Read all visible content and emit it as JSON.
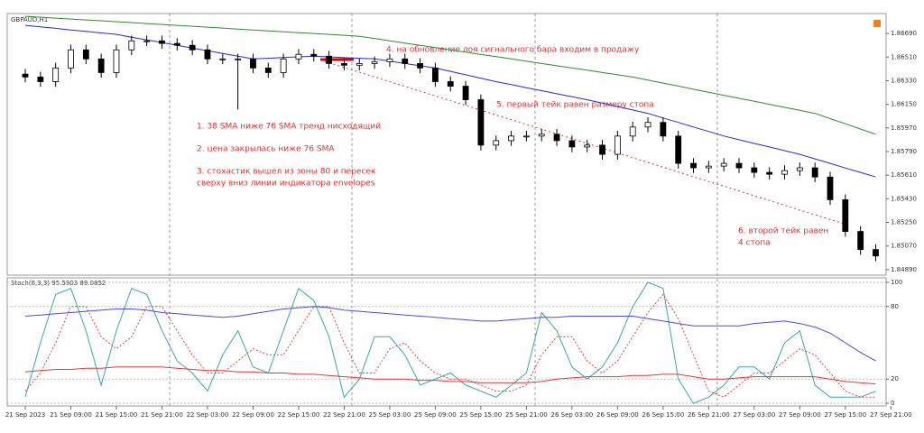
{
  "chart_data": [
    {
      "type": "candlestick",
      "title": "GBPAUD,H1",
      "categories": [
        "21 Sep 2023",
        null,
        null,
        "21 Sep 09:00",
        null,
        null,
        "21 Sep 15:00",
        null,
        null,
        "21 Sep 21:00",
        null,
        null,
        "22 Sep 03:00",
        null,
        null,
        "22 Sep 09:00",
        null,
        null,
        "22 Sep 15:00",
        null,
        null,
        "22 Sep 21:00",
        null,
        null,
        "25 Sep 03:00",
        null,
        null,
        "25 Sep 09:00",
        null,
        null,
        "25 Sep 15:00",
        null,
        null,
        "25 Sep 21:00",
        null,
        null,
        "26 Sep 03:00",
        null,
        null,
        "26 Sep 09:00",
        null,
        null,
        "26 Sep 15:00",
        null,
        null,
        "26 Sep 21:00",
        null,
        null,
        "27 Sep 03:00",
        null,
        null,
        "27 Sep 09:00",
        null,
        null,
        "27 Sep 15:00",
        null,
        null,
        "27 Sep 21:00"
      ],
      "open": [
        1.8638,
        1.86358,
        1.86323,
        1.86427,
        1.86565,
        1.86496,
        1.86392,
        1.86565,
        1.86634,
        1.86634,
        1.86614,
        1.866,
        1.86565,
        1.86496,
        1.86496,
        1.86496,
        1.86427,
        1.86392,
        1.86496,
        1.86531,
        1.86517,
        1.86461,
        1.86448,
        1.86461,
        1.86475,
        1.86496,
        1.86461,
        1.86427,
        1.86323,
        1.86288,
        1.86185,
        1.85839,
        1.85873,
        1.85908,
        1.85908,
        1.85922,
        1.85873,
        1.85825,
        1.85839,
        1.85769,
        1.85908,
        1.85977,
        1.86012,
        1.85908,
        1.857,
        1.85666,
        1.85679,
        1.857,
        1.85666,
        1.85631,
        1.85617,
        1.85645,
        1.85666,
        1.85596,
        1.85423,
        1.85181,
        1.85043,
        null
      ],
      "high": [
        1.8642,
        1.86398,
        1.86467,
        1.86605,
        1.86605,
        1.86536,
        1.86605,
        1.86674,
        1.86674,
        1.86674,
        1.86654,
        1.8664,
        1.86605,
        1.86536,
        1.86536,
        1.86536,
        1.86467,
        1.86536,
        1.86571,
        1.86571,
        1.86557,
        1.86501,
        1.86501,
        1.86515,
        1.86536,
        1.86536,
        1.86501,
        1.86467,
        1.86363,
        1.86328,
        1.86225,
        1.85913,
        1.85948,
        1.85948,
        1.85962,
        1.85962,
        1.85913,
        1.85879,
        1.85879,
        1.85948,
        1.86017,
        1.86052,
        1.86052,
        1.85948,
        1.8574,
        1.85719,
        1.8574,
        1.8574,
        1.85706,
        1.85671,
        1.85685,
        1.85706,
        1.85706,
        1.85636,
        1.85463,
        1.85221,
        1.85083,
        null
      ],
      "low": [
        1.86318,
        1.86283,
        1.86283,
        1.86387,
        1.86456,
        1.86352,
        1.86352,
        1.86525,
        1.86594,
        1.86574,
        1.8656,
        1.86525,
        1.86456,
        1.86456,
        1.8611,
        1.86387,
        1.86352,
        1.86352,
        1.86456,
        1.86477,
        1.86421,
        1.86408,
        1.86408,
        1.86421,
        1.86435,
        1.86421,
        1.86387,
        1.86283,
        1.86248,
        1.86145,
        1.85799,
        1.85799,
        1.85833,
        1.85868,
        1.85868,
        1.85833,
        1.85785,
        1.85785,
        1.85729,
        1.85729,
        1.85868,
        1.85937,
        1.85868,
        1.8566,
        1.85626,
        1.85626,
        1.85639,
        1.85626,
        1.85591,
        1.85577,
        1.85577,
        1.85605,
        1.85556,
        1.85383,
        1.85141,
        1.85003,
        1.84954,
        null
      ],
      "close": [
        1.86358,
        1.86323,
        1.86427,
        1.86565,
        1.86496,
        1.86392,
        1.86565,
        1.86634,
        1.86634,
        1.86614,
        1.866,
        1.86565,
        1.86496,
        1.86496,
        1.86496,
        1.86427,
        1.86392,
        1.86496,
        1.86531,
        1.86517,
        1.86461,
        1.86448,
        1.86461,
        1.86475,
        1.86496,
        1.86461,
        1.86427,
        1.86323,
        1.86288,
        1.86185,
        1.85839,
        1.85873,
        1.85908,
        1.85908,
        1.85922,
        1.85873,
        1.85825,
        1.85839,
        1.85769,
        1.85908,
        1.85977,
        1.86012,
        1.85908,
        1.857,
        1.85666,
        1.85679,
        1.857,
        1.85666,
        1.85631,
        1.85617,
        1.85645,
        1.85666,
        1.85596,
        1.85423,
        1.85181,
        1.85043,
        1.84994,
        null
      ],
      "series": [
        {
          "color": "#2a2ad0",
          "values": [
            1.86752,
            1.8674,
            1.86729,
            1.86717,
            1.86706,
            1.86694,
            1.86683,
            1.86662,
            1.86641,
            1.86621,
            1.866,
            1.86579,
            1.86558,
            1.86538,
            1.86517,
            1.86496,
            1.86501,
            1.86507,
            1.86512,
            1.86517,
            1.86512,
            1.86506,
            1.86501,
            1.86496,
            1.86479,
            1.86461,
            1.86444,
            1.86427,
            1.86401,
            1.86375,
            1.86349,
            1.86323,
            1.863,
            1.86277,
            1.86254,
            1.86231,
            1.86208,
            1.86185,
            1.86159,
            1.86133,
            1.86107,
            1.86081,
            1.86046,
            1.86012,
            1.85977,
            1.85943,
            1.85908,
            1.8588,
            1.85852,
            1.85825,
            1.85797,
            1.85769,
            1.85734,
            1.857,
            1.85665,
            1.85631,
            1.85596,
            null
          ]
        },
        {
          "color": "#2e8b2e",
          "values": [
            1.86821,
            1.86814,
            1.86807,
            1.868,
            1.86793,
            1.86787,
            1.8678,
            1.86773,
            1.86766,
            1.86759,
            1.86752,
            1.86745,
            1.86738,
            1.86731,
            1.86724,
            1.86717,
            1.8671,
            1.86703,
            1.86696,
            1.8669,
            1.86683,
            1.86676,
            1.86669,
            1.86652,
            1.86634,
            1.86617,
            1.866,
            1.86582,
            1.86565,
            1.86548,
            1.8653,
            1.86513,
            1.86496,
            1.86478,
            1.86461,
            1.86444,
            1.86427,
            1.8641,
            1.86392,
            1.86375,
            1.86358,
            1.86335,
            1.86312,
            1.86289,
            1.86265,
            1.86242,
            1.86219,
            1.86196,
            1.86173,
            1.8615,
            1.86127,
            1.86104,
            1.86081,
            1.86041,
            1.86002,
            1.85962,
            1.85922,
            null
          ]
        }
      ],
      "ylim": [
        1.84848,
        1.86842
      ],
      "yticks": [
        {
          "value": 1.8669,
          "label": "1.86690"
        },
        {
          "value": 1.8651,
          "label": "1.86510"
        },
        {
          "value": 1.8633,
          "label": "1.86330"
        },
        {
          "value": 1.8615,
          "label": "1.86150"
        },
        {
          "value": 1.8597,
          "label": "1.85970"
        },
        {
          "value": 1.8579,
          "label": "1.85790"
        },
        {
          "value": 1.8561,
          "label": "1.85610"
        },
        {
          "value": 1.8543,
          "label": "1.85430"
        },
        {
          "value": 1.8525,
          "label": "1.85250"
        },
        {
          "value": 1.8507,
          "label": "1.85070"
        },
        {
          "value": 1.8489,
          "label": "1.84890"
        }
      ],
      "annotations": [
        "4. на обновление лоя сигнального бара входим в продажу",
        "1. 38 SMA ниже 76 SMA тренд нисходящий",
        "2. цена закрылась ниже 76 SMA",
        "3. стохастик вышел из зоны 80 и пересек",
        "сверху вниз линии индикатора envelopes",
        "5. первый тейк равен размеру стопа",
        "6. второй тейк равен",
        "4 стопа"
      ]
    },
    {
      "type": "line",
      "title": "Stoch(8,3,3) 95.5903 89.0852",
      "series": [
        {
          "color": "#3aa8a0",
          "dash": false,
          "values": [
            5,
            50,
            90,
            95,
            60,
            15,
            60,
            95,
            90,
            60,
            35,
            25,
            10,
            40,
            60,
            30,
            25,
            60,
            95,
            85,
            55,
            5,
            20,
            55,
            55,
            40,
            15,
            20,
            25,
            15,
            10,
            5,
            15,
            25,
            75,
            60,
            30,
            20,
            30,
            50,
            80,
            100,
            95,
            20,
            0,
            5,
            15,
            30,
            30,
            20,
            50,
            60,
            15,
            5,
            5,
            5,
            10,
            null
          ]
        },
        {
          "color": "#e04040",
          "dash": true,
          "values": [
            10,
            25,
            50,
            80,
            80,
            55,
            45,
            55,
            80,
            80,
            60,
            40,
            25,
            25,
            35,
            45,
            40,
            40,
            60,
            80,
            80,
            50,
            25,
            25,
            45,
            50,
            35,
            25,
            20,
            20,
            15,
            10,
            10,
            15,
            40,
            55,
            55,
            35,
            25,
            35,
            55,
            75,
            90,
            70,
            40,
            10,
            5,
            15,
            25,
            25,
            35,
            45,
            40,
            25,
            10,
            5,
            5,
            null
          ]
        },
        {
          "color": "#4a4ae0",
          "dash": false,
          "values": [
            72,
            73,
            74,
            75,
            76,
            77,
            78,
            78,
            77,
            75,
            74,
            73,
            72,
            71,
            72,
            74,
            76,
            78,
            79,
            80,
            79,
            77,
            76,
            75,
            74,
            73,
            72,
            71,
            70,
            69,
            68,
            68,
            69,
            70,
            71,
            71,
            72,
            72,
            72,
            72,
            72,
            70,
            68,
            66,
            64,
            64,
            64,
            64,
            66,
            67,
            68,
            66,
            63,
            58,
            50,
            42,
            35,
            null
          ]
        },
        {
          "color": "#e03a3a",
          "dash": false,
          "values": [
            26,
            27,
            28,
            28,
            29,
            29,
            30,
            30,
            30,
            30,
            29,
            28,
            27,
            27,
            26,
            26,
            25,
            25,
            24,
            24,
            23,
            22,
            21,
            20,
            20,
            20,
            19,
            19,
            18,
            18,
            17,
            17,
            17,
            17,
            18,
            20,
            21,
            22,
            22,
            22,
            23,
            23,
            24,
            24,
            22,
            20,
            20,
            21,
            22,
            22,
            22,
            22,
            22,
            20,
            18,
            17,
            16,
            null
          ]
        }
      ],
      "ylim": [
        -2.2,
        103.7
      ],
      "yticks": [
        0,
        20,
        80,
        100
      ]
    }
  ]
}
